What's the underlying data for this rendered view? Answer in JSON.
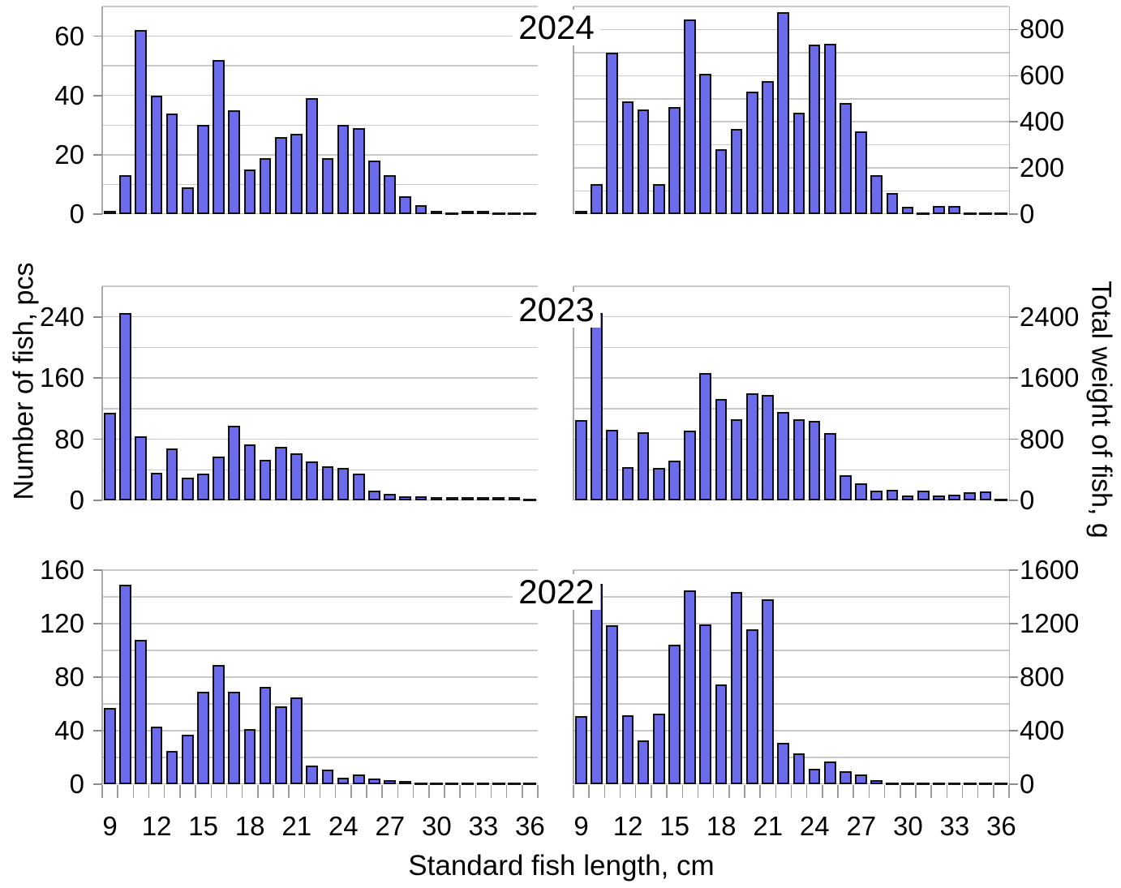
{
  "figure": {
    "xlabel": "Standard fish length, cm",
    "ylabel_left": "Number of fish, pcs",
    "ylabel_right": "Total weight of fish, g",
    "years": [
      "2024",
      "2023",
      "2022"
    ],
    "x_tick_labels": [
      9,
      12,
      15,
      18,
      21,
      24,
      27,
      30,
      33,
      36
    ],
    "bar_color": "#6b6bec",
    "bar_border_color": "#101010",
    "gridline_color": "#c9c9c9"
  },
  "chart_data": [
    {
      "type": "bar",
      "year": "2024",
      "measure": "number_of_fish_pcs",
      "side": "left",
      "bin_start_cm": 9,
      "bin_step_cm": 1,
      "x_axis": false,
      "ymax": 70,
      "grid_step": 10,
      "yticks": [
        0,
        20,
        40,
        60
      ],
      "values": [
        1,
        13,
        62,
        40,
        34,
        9,
        30,
        52,
        35,
        15,
        19,
        26,
        27,
        39,
        19,
        30,
        29,
        18,
        13,
        6,
        3,
        1,
        0,
        1,
        1,
        0,
        0,
        0
      ]
    },
    {
      "type": "bar",
      "year": "2024",
      "measure": "total_weight_g",
      "side": "right",
      "bin_start_cm": 9,
      "bin_step_cm": 1,
      "x_axis": false,
      "ymax": 900,
      "grid_step": 100,
      "yticks": [
        0,
        200,
        400,
        600,
        800
      ],
      "values": [
        10,
        130,
        700,
        490,
        455,
        130,
        465,
        845,
        610,
        280,
        370,
        530,
        575,
        875,
        440,
        735,
        740,
        480,
        360,
        170,
        90,
        30,
        0,
        35,
        35,
        0,
        0,
        0
      ]
    },
    {
      "type": "bar",
      "year": "2023",
      "measure": "number_of_fish_pcs",
      "side": "left",
      "bin_start_cm": 9,
      "bin_step_cm": 1,
      "x_axis": false,
      "ymax": 280,
      "grid_step": 40,
      "yticks": [
        0,
        80,
        160,
        240
      ],
      "values": [
        115,
        245,
        84,
        36,
        68,
        30,
        35,
        57,
        98,
        73,
        53,
        70,
        62,
        51,
        45,
        42,
        35,
        13,
        8,
        5,
        5,
        1,
        4,
        1,
        1,
        3,
        3,
        0
      ]
    },
    {
      "type": "bar",
      "year": "2023",
      "measure": "total_weight_g",
      "side": "right",
      "bin_start_cm": 9,
      "bin_step_cm": 1,
      "x_axis": false,
      "ymax": 2800,
      "grid_step": 400,
      "yticks": [
        0,
        800,
        1600,
        2400
      ],
      "values": [
        1050,
        2450,
        920,
        430,
        890,
        420,
        520,
        910,
        1670,
        1330,
        1060,
        1400,
        1380,
        1160,
        1060,
        1040,
        880,
        330,
        220,
        130,
        140,
        60,
        130,
        60,
        70,
        110,
        120,
        0
      ]
    },
    {
      "type": "bar",
      "year": "2022",
      "measure": "number_of_fish_pcs",
      "side": "left",
      "bin_start_cm": 9,
      "bin_step_cm": 1,
      "x_axis": true,
      "ymax": 160,
      "grid_step": 20,
      "yticks": [
        0,
        40,
        80,
        120,
        160
      ],
      "values": [
        57,
        149,
        108,
        43,
        25,
        37,
        69,
        89,
        69,
        41,
        73,
        58,
        65,
        14,
        11,
        5,
        7,
        4,
        3,
        1,
        0,
        0,
        0,
        0,
        0,
        0,
        0,
        0
      ]
    },
    {
      "type": "bar",
      "year": "2022",
      "measure": "total_weight_g",
      "side": "right",
      "bin_start_cm": 9,
      "bin_step_cm": 1,
      "x_axis": true,
      "ymax": 1600,
      "grid_step": 200,
      "yticks": [
        0,
        400,
        800,
        1200,
        1600
      ],
      "values": [
        510,
        1500,
        1185,
        515,
        330,
        530,
        1045,
        1450,
        1195,
        745,
        1435,
        1160,
        1380,
        310,
        230,
        115,
        170,
        100,
        70,
        30,
        0,
        0,
        0,
        0,
        0,
        0,
        0,
        0
      ]
    }
  ]
}
